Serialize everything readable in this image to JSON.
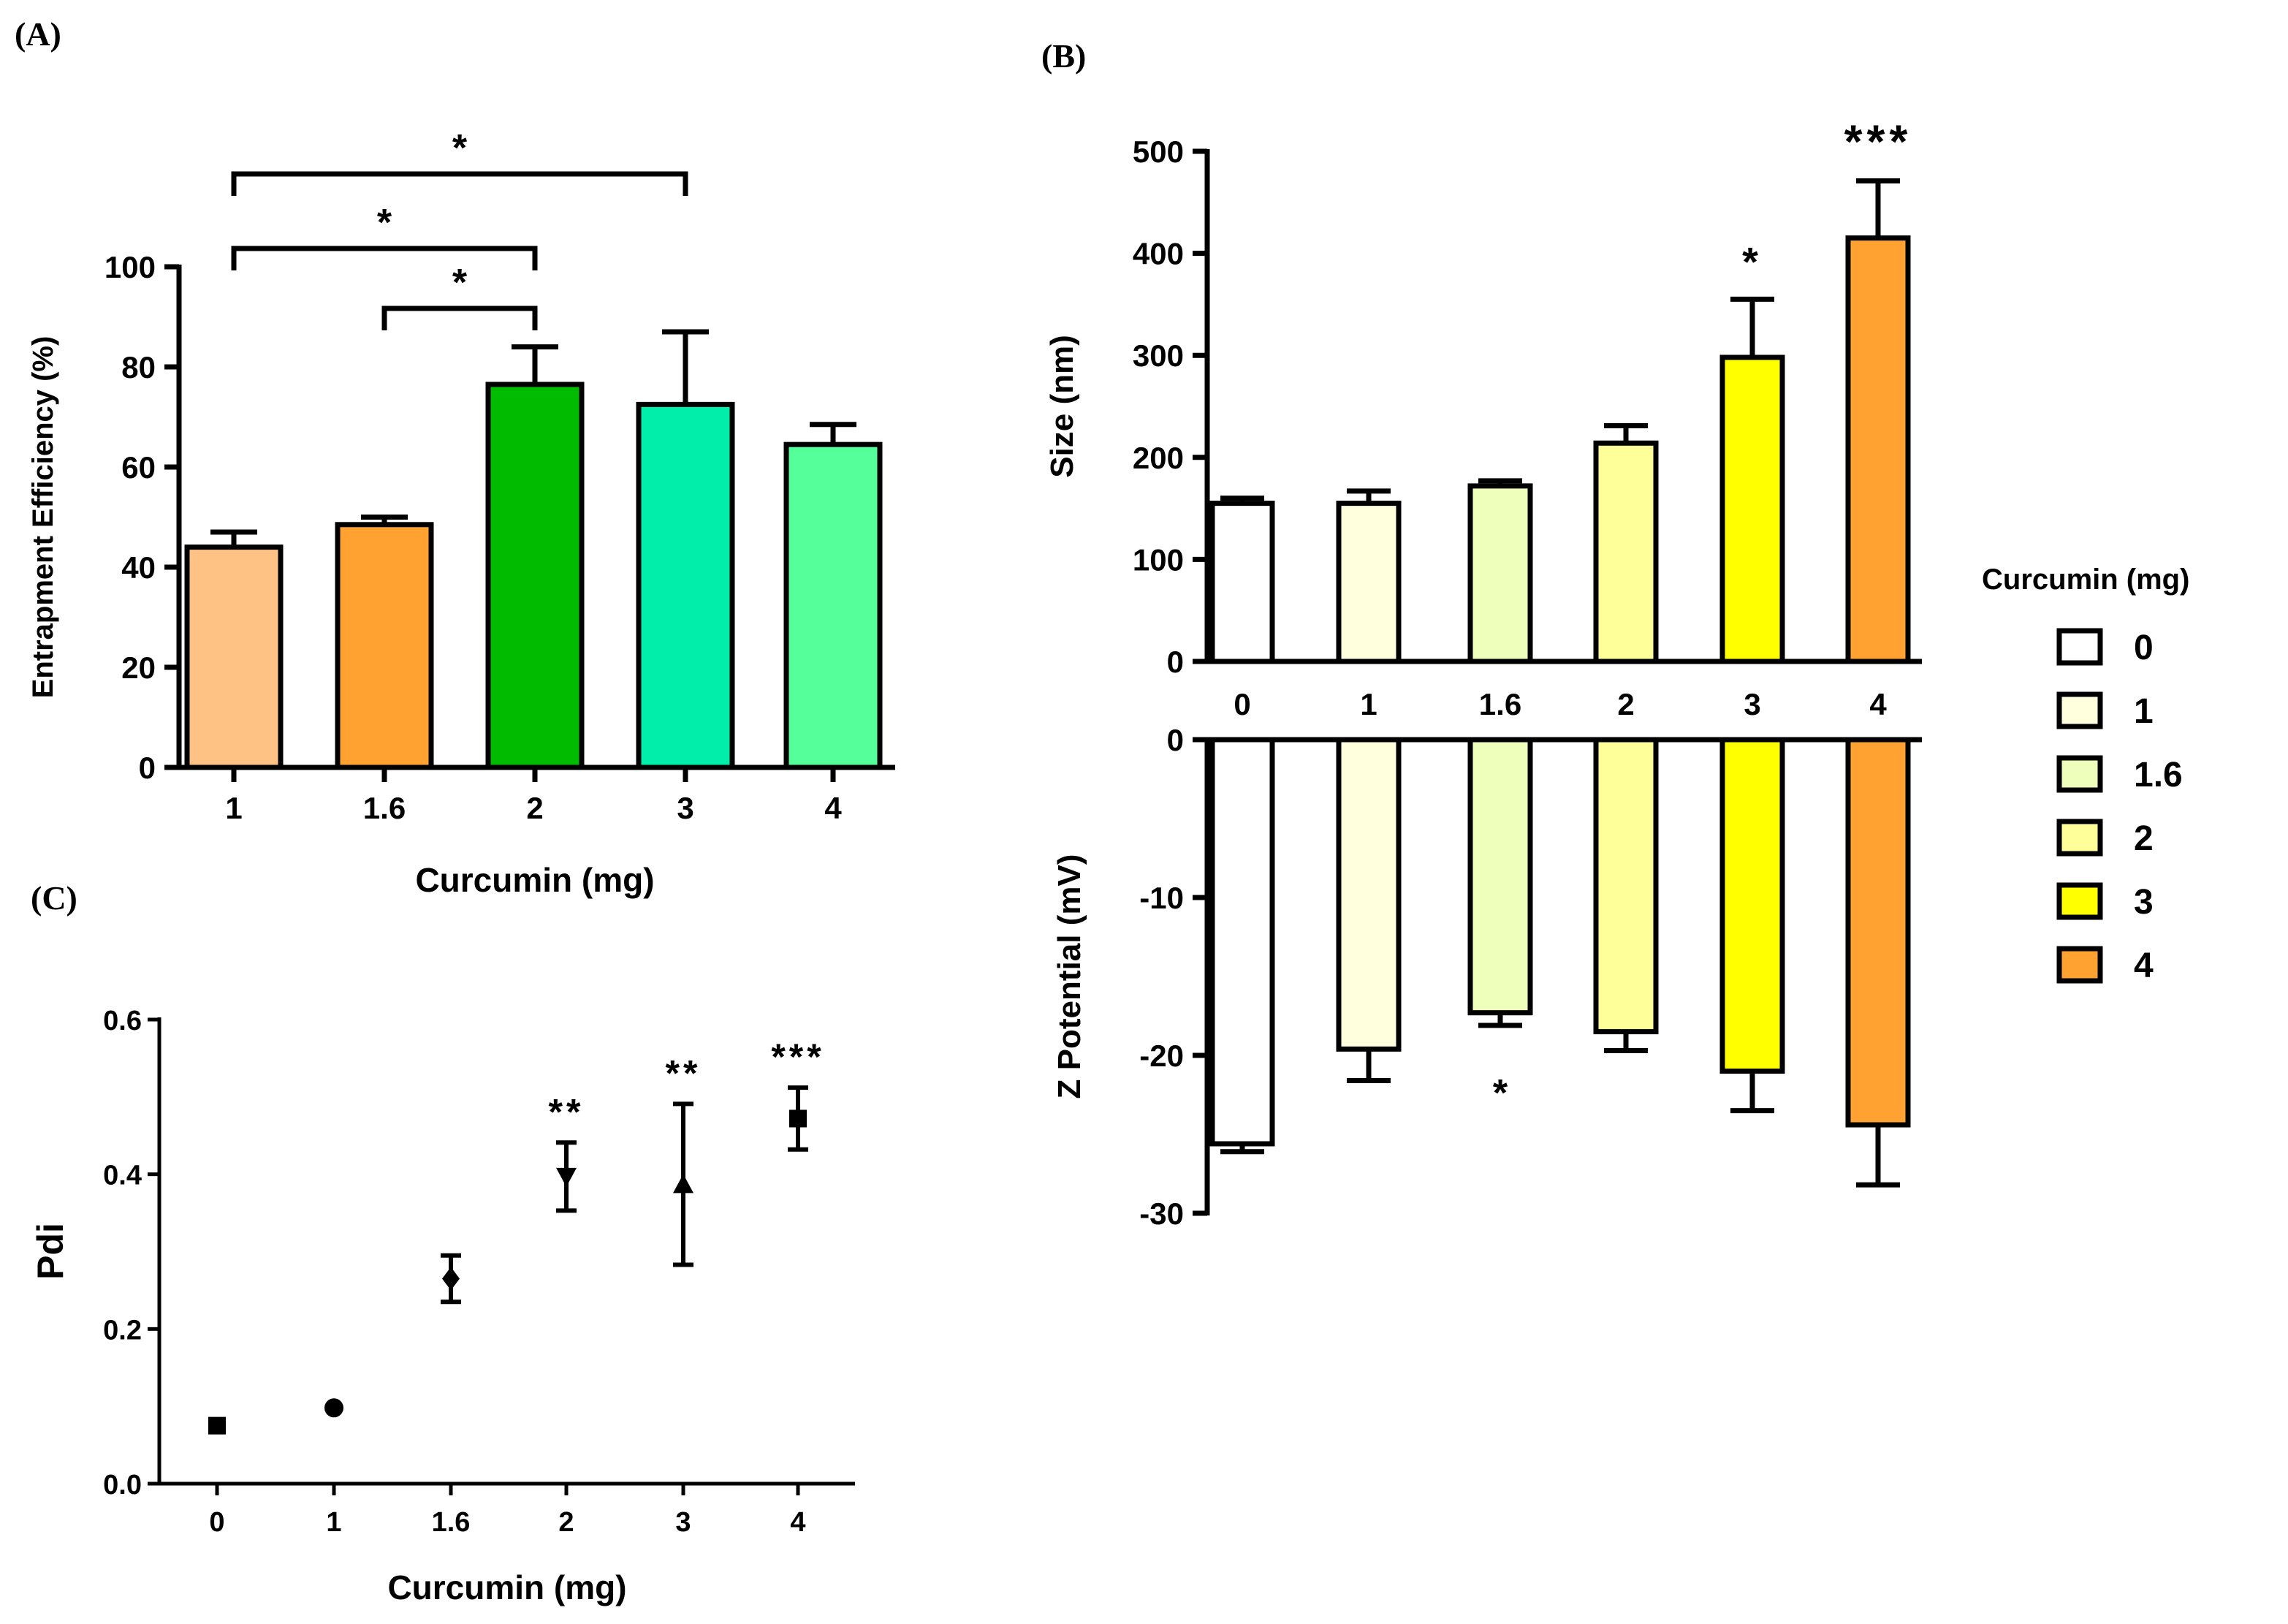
{
  "figure": {
    "panel_labels": [
      "(A)",
      "(B)",
      "(C)"
    ]
  },
  "chart_data": [
    {
      "panel": "(A)",
      "type": "bar",
      "categories": [
        "1",
        "1.6",
        "2",
        "3",
        "4"
      ],
      "values": [
        44,
        48.5,
        76.5,
        72.5,
        64.5
      ],
      "errors": [
        3,
        1.5,
        7.5,
        14.5,
        4
      ],
      "colors": [
        "#ffc285",
        "#ffa232",
        "#00bb00",
        "#00eeaa",
        "#55ff99"
      ],
      "xlabel": "Curcumin (mg)",
      "ylabel": "Entrapment Efficiency (%)",
      "ylim": [
        0,
        100
      ],
      "yticks": [
        0,
        20,
        40,
        60,
        80,
        100
      ],
      "significance": [
        {
          "from": "1",
          "to": "3",
          "label": "*"
        },
        {
          "from": "1",
          "to": "2",
          "label": "*"
        },
        {
          "from": "1.6",
          "to": "2",
          "label": "*"
        }
      ]
    },
    {
      "panel": "(B)",
      "type": "bar",
      "categories": [
        "0",
        "1",
        "1.6",
        "2",
        "3",
        "4"
      ],
      "colors": [
        "#ffffff",
        "#ffffdd",
        "#eeffbb",
        "#ffff99",
        "#ffff00",
        "#ffa232"
      ],
      "legend_title": "Curcumin (mg)",
      "legend_placement": "right",
      "top": {
        "ylabel": "Size (nm)",
        "values": [
          155,
          155,
          172,
          214,
          298,
          415
        ],
        "errors": [
          5,
          12,
          5,
          17,
          57,
          56
        ],
        "ylim": [
          0,
          500
        ],
        "yticks": [
          0,
          100,
          200,
          300,
          400,
          500
        ],
        "stars": [
          "",
          "",
          "",
          "",
          "*",
          "***"
        ]
      },
      "bottom": {
        "ylabel": "Z Potential  (mV)",
        "values": [
          -25.6,
          -19.6,
          -17.3,
          -18.5,
          -21,
          -24.4
        ],
        "errors": [
          0.5,
          2,
          0.8,
          1.2,
          2.5,
          3.8
        ],
        "ylim": [
          -30,
          0
        ],
        "yticks": [
          0,
          -10,
          -20,
          -30
        ],
        "stars": [
          "",
          "",
          "*",
          "",
          "",
          ""
        ]
      }
    },
    {
      "panel": "(C)",
      "type": "scatter",
      "categories": [
        "0",
        "1",
        "1.6",
        "2",
        "3",
        "4"
      ],
      "values": [
        0.075,
        0.098,
        0.265,
        0.397,
        0.387,
        0.472
      ],
      "errors": [
        0,
        0,
        0.03,
        0.044,
        0.104,
        0.04
      ],
      "markers": [
        "square",
        "circle",
        "diamond",
        "triangle-down",
        "triangle-up",
        "square"
      ],
      "xlabel": "Curcumin (mg)",
      "ylabel": "Pdi",
      "ylim": [
        0,
        0.6
      ],
      "yticks": [
        0.0,
        0.2,
        0.4,
        0.6
      ],
      "stars": [
        "",
        "",
        "",
        "**",
        "**",
        "***"
      ]
    }
  ]
}
